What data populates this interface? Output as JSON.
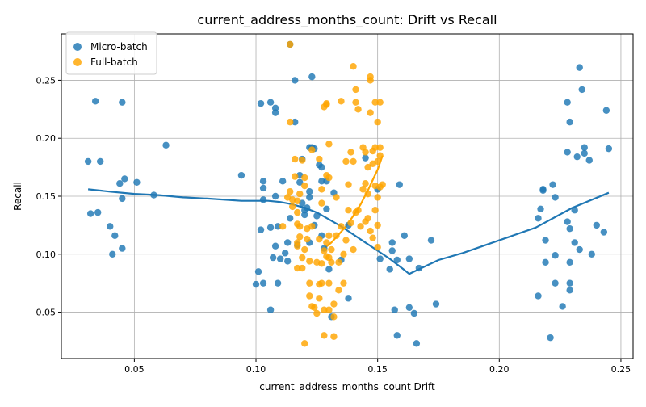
{
  "chart_data": {
    "type": "scatter",
    "title": "current_address_months_count: Drift vs Recall",
    "xlabel": "current_address_months_count Drift",
    "ylabel": "Recall",
    "xlim": [
      0.02,
      0.255
    ],
    "ylim": [
      0.01,
      0.29
    ],
    "xticks": [
      0.05,
      0.1,
      0.15,
      0.2,
      0.25
    ],
    "xtick_labels": [
      "0.05",
      "0.10",
      "0.15",
      "0.20",
      "0.25"
    ],
    "yticks": [
      0.05,
      0.1,
      0.15,
      0.2,
      0.25
    ],
    "ytick_labels": [
      "0.05",
      "0.10",
      "0.15",
      "0.20",
      "0.25"
    ],
    "grid": true,
    "legend_position": "top-left",
    "series": [
      {
        "name": "Micro-batch",
        "color": "#1f77b4",
        "points": [
          [
            0.031,
            0.18
          ],
          [
            0.034,
            0.232
          ],
          [
            0.036,
            0.18
          ],
          [
            0.032,
            0.135
          ],
          [
            0.035,
            0.136
          ],
          [
            0.04,
            0.124
          ],
          [
            0.042,
            0.116
          ],
          [
            0.041,
            0.1
          ],
          [
            0.044,
            0.161
          ],
          [
            0.045,
            0.231
          ],
          [
            0.046,
            0.165
          ],
          [
            0.045,
            0.148
          ],
          [
            0.045,
            0.105
          ],
          [
            0.051,
            0.162
          ],
          [
            0.058,
            0.151
          ],
          [
            0.063,
            0.194
          ],
          [
            0.094,
            0.168
          ],
          [
            0.1,
            0.074
          ],
          [
            0.101,
            0.085
          ],
          [
            0.102,
            0.121
          ],
          [
            0.102,
            0.23
          ],
          [
            0.103,
            0.163
          ],
          [
            0.103,
            0.157
          ],
          [
            0.103,
            0.147
          ],
          [
            0.103,
            0.075
          ],
          [
            0.106,
            0.231
          ],
          [
            0.106,
            0.123
          ],
          [
            0.106,
            0.052
          ],
          [
            0.108,
            0.226
          ],
          [
            0.108,
            0.222
          ],
          [
            0.108,
            0.15
          ],
          [
            0.108,
            0.107
          ],
          [
            0.107,
            0.097
          ],
          [
            0.109,
            0.124
          ],
          [
            0.109,
            0.075
          ],
          [
            0.11,
            0.096
          ],
          [
            0.111,
            0.163
          ],
          [
            0.112,
            0.101
          ],
          [
            0.113,
            0.094
          ],
          [
            0.113,
            0.11
          ],
          [
            0.114,
            0.131
          ],
          [
            0.114,
            0.281
          ],
          [
            0.116,
            0.25
          ],
          [
            0.116,
            0.214
          ],
          [
            0.117,
            0.108
          ],
          [
            0.118,
            0.168
          ],
          [
            0.118,
            0.162
          ],
          [
            0.119,
            0.182
          ],
          [
            0.119,
            0.144
          ],
          [
            0.12,
            0.138
          ],
          [
            0.12,
            0.134
          ],
          [
            0.121,
            0.14
          ],
          [
            0.122,
            0.192
          ],
          [
            0.122,
            0.154
          ],
          [
            0.122,
            0.149
          ],
          [
            0.122,
            0.11
          ],
          [
            0.123,
            0.253
          ],
          [
            0.123,
            0.192
          ],
          [
            0.124,
            0.191
          ],
          [
            0.124,
            0.125
          ],
          [
            0.125,
            0.133
          ],
          [
            0.126,
            0.177
          ],
          [
            0.127,
            0.175
          ],
          [
            0.127,
            0.163
          ],
          [
            0.127,
            0.116
          ],
          [
            0.128,
            0.105
          ],
          [
            0.129,
            0.139
          ],
          [
            0.129,
            0.163
          ],
          [
            0.13,
            0.087
          ],
          [
            0.131,
            0.046
          ],
          [
            0.132,
            0.153
          ],
          [
            0.135,
            0.095
          ],
          [
            0.138,
            0.125
          ],
          [
            0.138,
            0.062
          ],
          [
            0.145,
            0.183
          ],
          [
            0.15,
            0.156
          ],
          [
            0.151,
            0.096
          ],
          [
            0.155,
            0.087
          ],
          [
            0.156,
            0.11
          ],
          [
            0.156,
            0.103
          ],
          [
            0.157,
            0.052
          ],
          [
            0.158,
            0.03
          ],
          [
            0.158,
            0.095
          ],
          [
            0.159,
            0.16
          ],
          [
            0.161,
            0.116
          ],
          [
            0.163,
            0.096
          ],
          [
            0.163,
            0.054
          ],
          [
            0.165,
            0.049
          ],
          [
            0.166,
            0.023
          ],
          [
            0.167,
            0.088
          ],
          [
            0.172,
            0.112
          ],
          [
            0.174,
            0.057
          ],
          [
            0.216,
            0.131
          ],
          [
            0.216,
            0.064
          ],
          [
            0.217,
            0.139
          ],
          [
            0.218,
            0.156
          ],
          [
            0.218,
            0.155
          ],
          [
            0.219,
            0.112
          ],
          [
            0.219,
            0.093
          ],
          [
            0.221,
            0.028
          ],
          [
            0.222,
            0.16
          ],
          [
            0.223,
            0.099
          ],
          [
            0.223,
            0.075
          ],
          [
            0.223,
            0.149
          ],
          [
            0.226,
            0.055
          ],
          [
            0.228,
            0.128
          ],
          [
            0.228,
            0.231
          ],
          [
            0.228,
            0.188
          ],
          [
            0.229,
            0.214
          ],
          [
            0.229,
            0.075
          ],
          [
            0.229,
            0.069
          ],
          [
            0.229,
            0.122
          ],
          [
            0.229,
            0.093
          ],
          [
            0.231,
            0.11
          ],
          [
            0.231,
            0.138
          ],
          [
            0.232,
            0.184
          ],
          [
            0.233,
            0.261
          ],
          [
            0.233,
            0.104
          ],
          [
            0.234,
            0.242
          ],
          [
            0.235,
            0.192
          ],
          [
            0.235,
            0.187
          ],
          [
            0.237,
            0.181
          ],
          [
            0.238,
            0.1
          ],
          [
            0.24,
            0.125
          ],
          [
            0.243,
            0.119
          ],
          [
            0.244,
            0.224
          ],
          [
            0.245,
            0.191
          ]
        ]
      },
      {
        "name": "Full-batch",
        "color": "#ffa500",
        "points": [
          [
            0.111,
            0.124
          ],
          [
            0.113,
            0.149
          ],
          [
            0.114,
            0.281
          ],
          [
            0.114,
            0.214
          ],
          [
            0.114,
            0.154
          ],
          [
            0.115,
            0.147
          ],
          [
            0.115,
            0.141
          ],
          [
            0.116,
            0.167
          ],
          [
            0.116,
            0.182
          ],
          [
            0.117,
            0.088
          ],
          [
            0.117,
            0.107
          ],
          [
            0.117,
            0.11
          ],
          [
            0.117,
            0.126
          ],
          [
            0.117,
            0.136
          ],
          [
            0.117,
            0.146
          ],
          [
            0.118,
            0.152
          ],
          [
            0.118,
            0.124
          ],
          [
            0.118,
            0.115
          ],
          [
            0.119,
            0.097
          ],
          [
            0.119,
            0.088
          ],
          [
            0.119,
            0.181
          ],
          [
            0.12,
            0.166
          ],
          [
            0.12,
            0.023
          ],
          [
            0.12,
            0.159
          ],
          [
            0.12,
            0.104
          ],
          [
            0.121,
            0.113
          ],
          [
            0.121,
            0.122
          ],
          [
            0.122,
            0.075
          ],
          [
            0.122,
            0.064
          ],
          [
            0.122,
            0.094
          ],
          [
            0.123,
            0.124
          ],
          [
            0.123,
            0.19
          ],
          [
            0.123,
            0.055
          ],
          [
            0.124,
            0.054
          ],
          [
            0.125,
            0.049
          ],
          [
            0.125,
            0.093
          ],
          [
            0.126,
            0.074
          ],
          [
            0.126,
            0.062
          ],
          [
            0.126,
            0.113
          ],
          [
            0.126,
            0.182
          ],
          [
            0.127,
            0.144
          ],
          [
            0.127,
            0.156
          ],
          [
            0.127,
            0.092
          ],
          [
            0.127,
            0.075
          ],
          [
            0.128,
            0.052
          ],
          [
            0.128,
            0.03
          ],
          [
            0.128,
            0.103
          ],
          [
            0.128,
            0.227
          ],
          [
            0.129,
            0.229
          ],
          [
            0.129,
            0.23
          ],
          [
            0.129,
            0.168
          ],
          [
            0.129,
            0.11
          ],
          [
            0.129,
            0.098
          ],
          [
            0.13,
            0.195
          ],
          [
            0.13,
            0.166
          ],
          [
            0.13,
            0.116
          ],
          [
            0.13,
            0.097
          ],
          [
            0.13,
            0.075
          ],
          [
            0.13,
            0.052
          ],
          [
            0.131,
            0.104
          ],
          [
            0.131,
            0.093
          ],
          [
            0.132,
            0.057
          ],
          [
            0.132,
            0.046
          ],
          [
            0.132,
            0.029
          ],
          [
            0.133,
            0.149
          ],
          [
            0.133,
            0.116
          ],
          [
            0.134,
            0.069
          ],
          [
            0.134,
            0.093
          ],
          [
            0.135,
            0.124
          ],
          [
            0.135,
            0.232
          ],
          [
            0.136,
            0.1
          ],
          [
            0.136,
            0.075
          ],
          [
            0.137,
            0.18
          ],
          [
            0.137,
            0.112
          ],
          [
            0.138,
            0.16
          ],
          [
            0.138,
            0.138
          ],
          [
            0.139,
            0.188
          ],
          [
            0.139,
            0.127
          ],
          [
            0.14,
            0.262
          ],
          [
            0.14,
            0.104
          ],
          [
            0.14,
            0.18
          ],
          [
            0.141,
            0.242
          ],
          [
            0.141,
            0.231
          ],
          [
            0.141,
            0.136
          ],
          [
            0.142,
            0.138
          ],
          [
            0.142,
            0.225
          ],
          [
            0.143,
            0.124
          ],
          [
            0.144,
            0.156
          ],
          [
            0.144,
            0.192
          ],
          [
            0.145,
            0.161
          ],
          [
            0.145,
            0.188
          ],
          [
            0.145,
            0.128
          ],
          [
            0.146,
            0.152
          ],
          [
            0.146,
            0.131
          ],
          [
            0.146,
            0.175
          ],
          [
            0.147,
            0.12
          ],
          [
            0.147,
            0.253
          ],
          [
            0.147,
            0.25
          ],
          [
            0.147,
            0.222
          ],
          [
            0.148,
            0.189
          ],
          [
            0.148,
            0.114
          ],
          [
            0.148,
            0.178
          ],
          [
            0.149,
            0.159
          ],
          [
            0.149,
            0.138
          ],
          [
            0.149,
            0.231
          ],
          [
            0.149,
            0.192
          ],
          [
            0.15,
            0.214
          ],
          [
            0.15,
            0.18
          ],
          [
            0.15,
            0.149
          ],
          [
            0.15,
            0.125
          ],
          [
            0.15,
            0.106
          ],
          [
            0.151,
            0.231
          ],
          [
            0.151,
            0.158
          ],
          [
            0.151,
            0.192
          ],
          [
            0.151,
            0.185
          ],
          [
            0.152,
            0.16
          ]
        ]
      }
    ],
    "trend_line": {
      "color": "#1f77b4",
      "points": [
        [
          0.031,
          0.156
        ],
        [
          0.04,
          0.154
        ],
        [
          0.05,
          0.152
        ],
        [
          0.06,
          0.151
        ],
        [
          0.07,
          0.149
        ],
        [
          0.08,
          0.148
        ],
        [
          0.094,
          0.146
        ],
        [
          0.1,
          0.146
        ],
        [
          0.105,
          0.146
        ],
        [
          0.11,
          0.145
        ],
        [
          0.115,
          0.143
        ],
        [
          0.12,
          0.14
        ],
        [
          0.125,
          0.136
        ],
        [
          0.13,
          0.13
        ],
        [
          0.135,
          0.124
        ],
        [
          0.14,
          0.117
        ],
        [
          0.145,
          0.11
        ],
        [
          0.15,
          0.103
        ],
        [
          0.155,
          0.096
        ],
        [
          0.16,
          0.088
        ],
        [
          0.163,
          0.083
        ],
        [
          0.165,
          0.085
        ],
        [
          0.17,
          0.09
        ],
        [
          0.175,
          0.095
        ],
        [
          0.185,
          0.101
        ],
        [
          0.2,
          0.112
        ],
        [
          0.215,
          0.123
        ],
        [
          0.23,
          0.14
        ],
        [
          0.245,
          0.153
        ]
      ]
    },
    "full_trend_line": {
      "color": "#ffa500",
      "points": [
        [
          0.128,
          0.105
        ],
        [
          0.131,
          0.11
        ],
        [
          0.134,
          0.117
        ],
        [
          0.137,
          0.124
        ],
        [
          0.14,
          0.133
        ],
        [
          0.143,
          0.143
        ],
        [
          0.146,
          0.155
        ],
        [
          0.148,
          0.164
        ],
        [
          0.15,
          0.173
        ],
        [
          0.152,
          0.185
        ]
      ]
    }
  }
}
